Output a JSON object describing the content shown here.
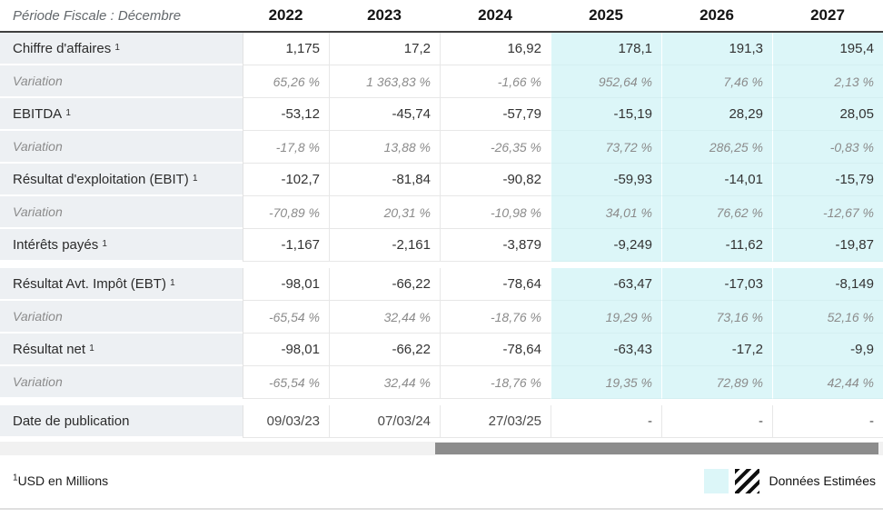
{
  "table": {
    "period_label": "Période Fiscale : Décembre",
    "years": [
      "2022",
      "2023",
      "2024",
      "2025",
      "2026",
      "2027"
    ],
    "estimated_start_index": 3,
    "rows": [
      {
        "type": "main",
        "label": "Chiffre d'affaires",
        "sup": "1",
        "values": [
          "1,175",
          "17,2",
          "16,92",
          "178,1",
          "191,3",
          "195,4"
        ]
      },
      {
        "type": "variation",
        "label": "Variation",
        "values": [
          "65,26 %",
          "1 363,83 %",
          "-1,66 %",
          "952,64 %",
          "7,46 %",
          "2,13 %"
        ]
      },
      {
        "type": "main",
        "label": "EBITDA",
        "sup": "1",
        "values": [
          "-53,12",
          "-45,74",
          "-57,79",
          "-15,19",
          "28,29",
          "28,05"
        ]
      },
      {
        "type": "variation",
        "label": "Variation",
        "values": [
          "-17,8 %",
          "13,88 %",
          "-26,35 %",
          "73,72 %",
          "286,25 %",
          "-0,83 %"
        ]
      },
      {
        "type": "main",
        "label": "Résultat d'exploitation (EBIT)",
        "sup": "1",
        "values": [
          "-102,7",
          "-81,84",
          "-90,82",
          "-59,93",
          "-14,01",
          "-15,79"
        ]
      },
      {
        "type": "variation",
        "label": "Variation",
        "values": [
          "-70,89 %",
          "20,31 %",
          "-10,98 %",
          "34,01 %",
          "76,62 %",
          "-12,67 %"
        ]
      },
      {
        "type": "main",
        "label": "Intérêts payés",
        "sup": "1",
        "values": [
          "-1,167",
          "-2,161",
          "-3,879",
          "-9,249",
          "-11,62",
          "-19,87"
        ]
      },
      {
        "type": "gap"
      },
      {
        "type": "main",
        "label": "Résultat Avt. Impôt (EBT)",
        "sup": "1",
        "values": [
          "-98,01",
          "-66,22",
          "-78,64",
          "-63,47",
          "-17,03",
          "-8,149"
        ]
      },
      {
        "type": "variation",
        "label": "Variation",
        "values": [
          "-65,54 %",
          "32,44 %",
          "-18,76 %",
          "19,29 %",
          "73,16 %",
          "52,16 %"
        ]
      },
      {
        "type": "main",
        "label": "Résultat net",
        "sup": "1",
        "values": [
          "-98,01",
          "-66,22",
          "-78,64",
          "-63,43",
          "-17,2",
          "-9,9"
        ]
      },
      {
        "type": "variation",
        "label": "Variation",
        "values": [
          "-65,54 %",
          "32,44 %",
          "-18,76 %",
          "19,35 %",
          "72,89 %",
          "42,44 %"
        ]
      },
      {
        "type": "gap"
      },
      {
        "type": "date",
        "label": "Date de publication",
        "values": [
          "09/03/23",
          "07/03/24",
          "27/03/25",
          "-",
          "-",
          "-"
        ]
      }
    ],
    "footnote_sup": "1",
    "footnote_text": "USD en Millions",
    "legend_label": "Données Estimées"
  },
  "colors": {
    "estimated_bg": "#dcf6f8",
    "label_column_bg": "#edf0f3",
    "header_rule": "#3f3f3f",
    "scrollbar_thumb": "#8c8c8c",
    "scrollbar_track": "#f1f1f1"
  }
}
